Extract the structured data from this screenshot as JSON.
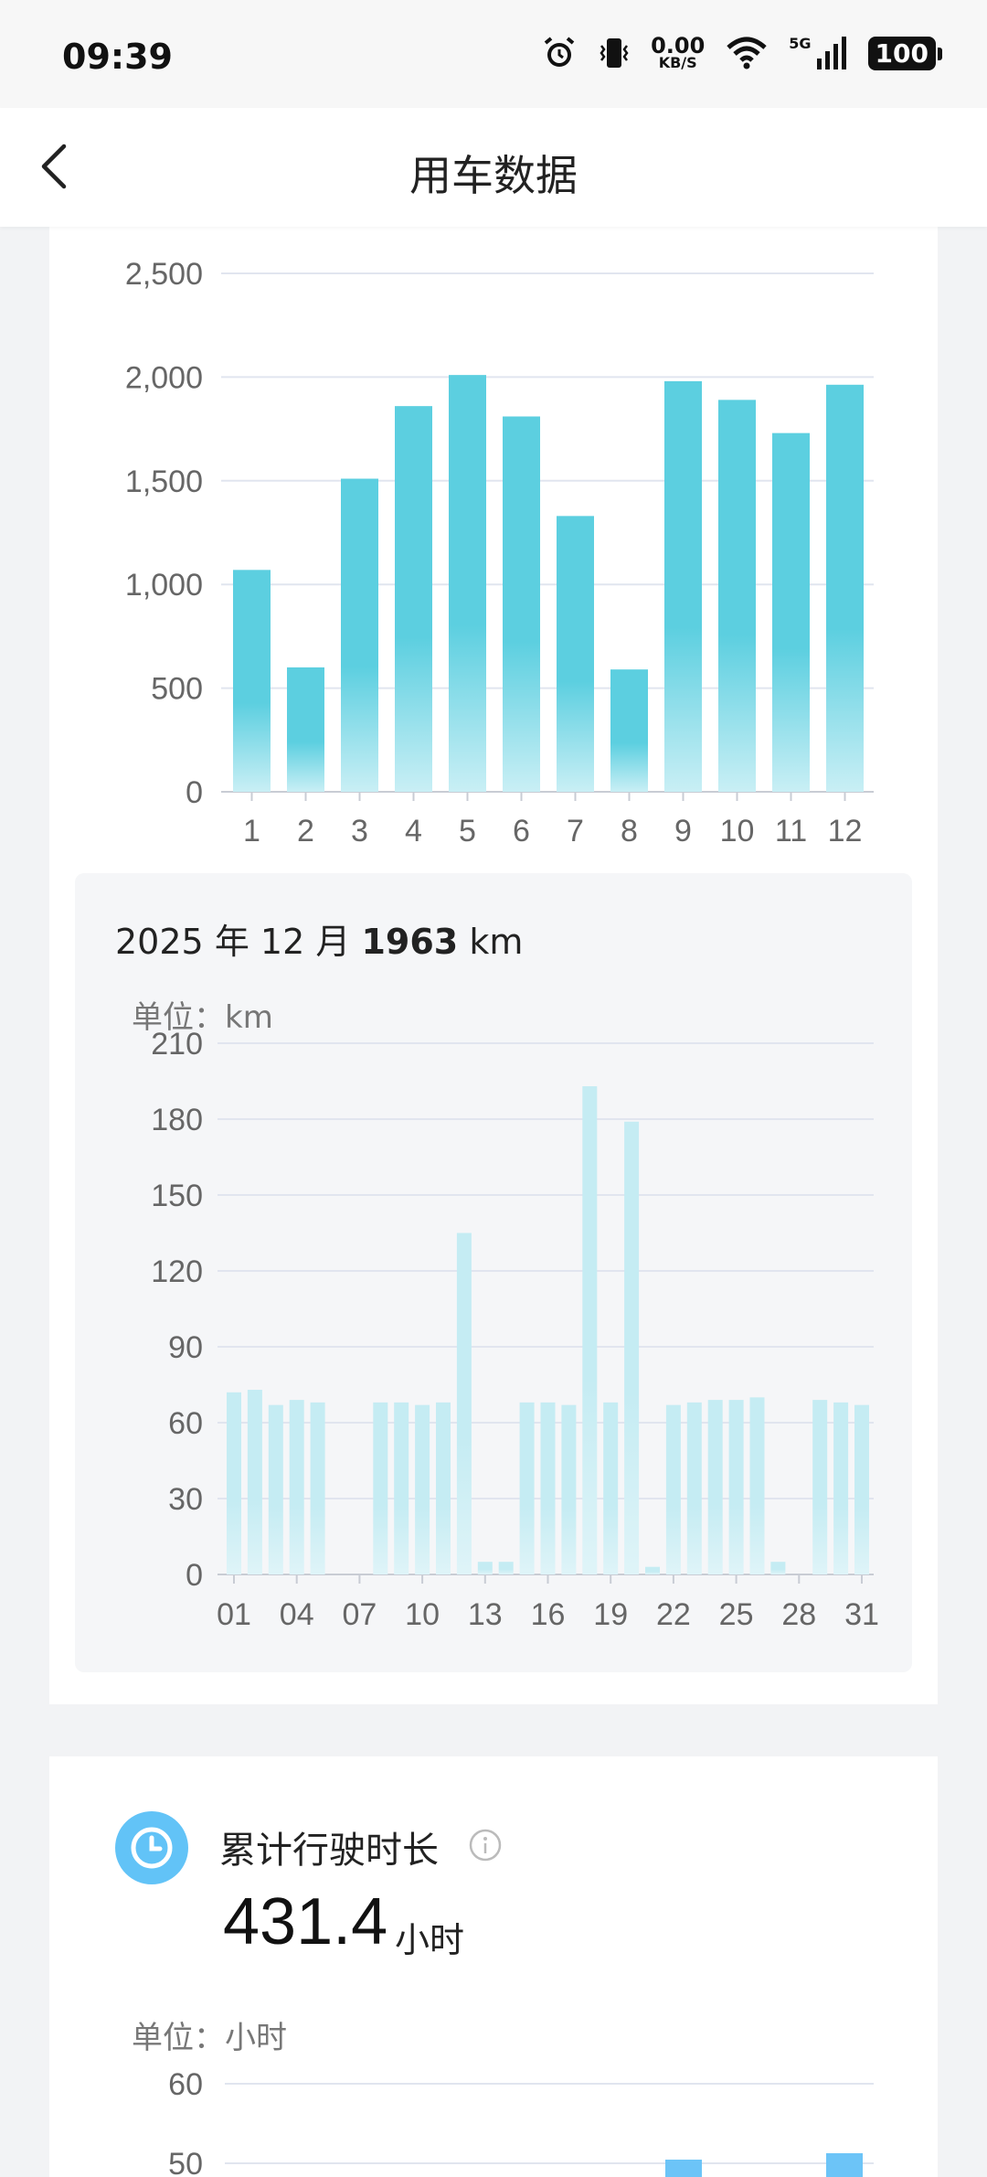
{
  "status_bar": {
    "time": "09:39",
    "net_speed_value": "0.00",
    "net_speed_unit": "KB/S",
    "network": "5G",
    "battery": "100",
    "icons": [
      "alarm-icon",
      "vibrate-icon",
      "wifi-icon",
      "signal-icon",
      "battery-icon"
    ]
  },
  "nav": {
    "title": "用车数据",
    "back_icon": "chevron-left-icon"
  },
  "monthly_chart": {
    "ylabel_partial": "单位：km",
    "chart_data": {
      "type": "bar",
      "categories": [
        "1",
        "2",
        "3",
        "4",
        "5",
        "6",
        "7",
        "8",
        "9",
        "10",
        "11",
        "12"
      ],
      "values": [
        1070,
        600,
        1510,
        1860,
        2010,
        1810,
        1330,
        590,
        1980,
        1890,
        1730,
        1963
      ],
      "ylim": [
        0,
        2500
      ],
      "yticks": [
        "0",
        "500",
        "1,000",
        "1,500",
        "2,000",
        "2,500"
      ],
      "ytick_values": [
        0,
        500,
        1000,
        1500,
        2000,
        2500
      ],
      "color": "#5ccfe0",
      "grid": true
    }
  },
  "daily_detail": {
    "year": "2025",
    "year_suffix": "年",
    "month": "12",
    "month_suffix": "月",
    "total": "1963",
    "total_unit": "km",
    "unit_label": "单位：km",
    "chart_data": {
      "type": "bar",
      "x": [
        1,
        2,
        3,
        4,
        5,
        6,
        7,
        8,
        9,
        10,
        11,
        12,
        13,
        14,
        15,
        16,
        17,
        18,
        19,
        20,
        21,
        22,
        23,
        24,
        25,
        26,
        27,
        28,
        29,
        30,
        31
      ],
      "values": [
        72,
        73,
        67,
        69,
        68,
        0,
        0,
        68,
        68,
        67,
        68,
        135,
        5,
        5,
        68,
        68,
        67,
        193,
        68,
        179,
        3,
        67,
        68,
        69,
        69,
        70,
        5,
        0,
        69,
        68,
        67
      ],
      "xtick_labels": [
        "01",
        "04",
        "07",
        "10",
        "13",
        "16",
        "19",
        "22",
        "25",
        "28",
        "31"
      ],
      "xtick_days": [
        1,
        4,
        7,
        10,
        13,
        16,
        19,
        22,
        25,
        28,
        31
      ],
      "ylim": [
        0,
        210
      ],
      "yticks": [
        "0",
        "30",
        "60",
        "90",
        "120",
        "150",
        "180",
        "210"
      ],
      "ytick_values": [
        0,
        30,
        60,
        90,
        120,
        150,
        180,
        210
      ],
      "color": "#c5ecf3",
      "grid": true
    }
  },
  "driving_time": {
    "icon": "clock-icon",
    "label": "累计行驶时长",
    "info_icon": "info-icon",
    "value": "431.4",
    "unit": "小时",
    "unit_label": "单位：小时",
    "chart_data": {
      "type": "bar",
      "yticks": [
        "50",
        "60"
      ],
      "ytick_values": [
        50,
        60
      ],
      "ylim": [
        0,
        60
      ],
      "color": "#6cc4f7"
    }
  }
}
